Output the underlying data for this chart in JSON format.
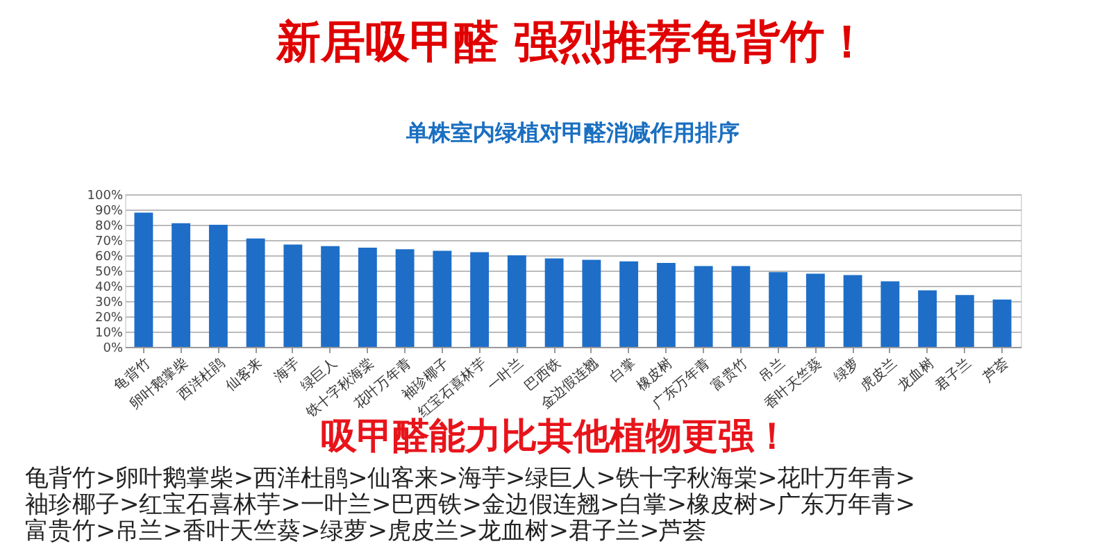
{
  "chart_data": {
    "type": "bar",
    "title": "新居吸甲醛 强烈推荐龟背竹！",
    "subtitle": "单株室内绿植对甲醛消减作用排序",
    "categories": [
      "龟背竹",
      "卵叶鹅掌柴",
      "西洋杜鹃",
      "仙客来",
      "海芋",
      "绿巨人",
      "铁十字秋海棠",
      "花叶万年青",
      "袖珍椰子",
      "红宝石喜林芋",
      "一叶兰",
      "巴西铁",
      "金边假连翘",
      "白掌",
      "橡皮树",
      "广东万年青",
      "富贵竹",
      "吊兰",
      "香叶天竺葵",
      "绿萝",
      "虎皮兰",
      "龙血树",
      "君子兰",
      "芦荟"
    ],
    "values": [
      88,
      81,
      80,
      71,
      67,
      66,
      65,
      64,
      63,
      62,
      60,
      58,
      57,
      56,
      55,
      53,
      53,
      49,
      48,
      47,
      43,
      37,
      34,
      31
    ],
    "color": "#1e6ec8",
    "ylim": [
      0,
      100
    ],
    "yticks": [
      {
        "value": 0,
        "label": "0%"
      },
      {
        "value": 10,
        "label": "10%"
      },
      {
        "value": 20,
        "label": "20%"
      },
      {
        "value": 30,
        "label": "30%"
      },
      {
        "value": 40,
        "label": "40%"
      },
      {
        "value": 50,
        "label": "50%"
      },
      {
        "value": 60,
        "label": "60%"
      },
      {
        "value": 70,
        "label": "70%"
      },
      {
        "value": 80,
        "label": "80%"
      },
      {
        "value": 90,
        "label": "90%"
      },
      {
        "value": 100,
        "label": "100%"
      }
    ],
    "grid": "y",
    "annotations": [
      "吸甲醛能力比其他植物更强！",
      "龟背竹>卵叶鹅掌柴>西洋杜鹃>仙客来>海芋>绿巨人>铁十字秋海棠>花叶万年青>",
      "袖珍椰子>红宝石喜林芋>一叶兰>巴西铁>金边假连翘>白掌>橡皮树>广东万年青>",
      "富贵竹>吊兰>香叶天竺葵>绿萝>虎皮兰>龙血树>君子兰>芦荟"
    ]
  }
}
